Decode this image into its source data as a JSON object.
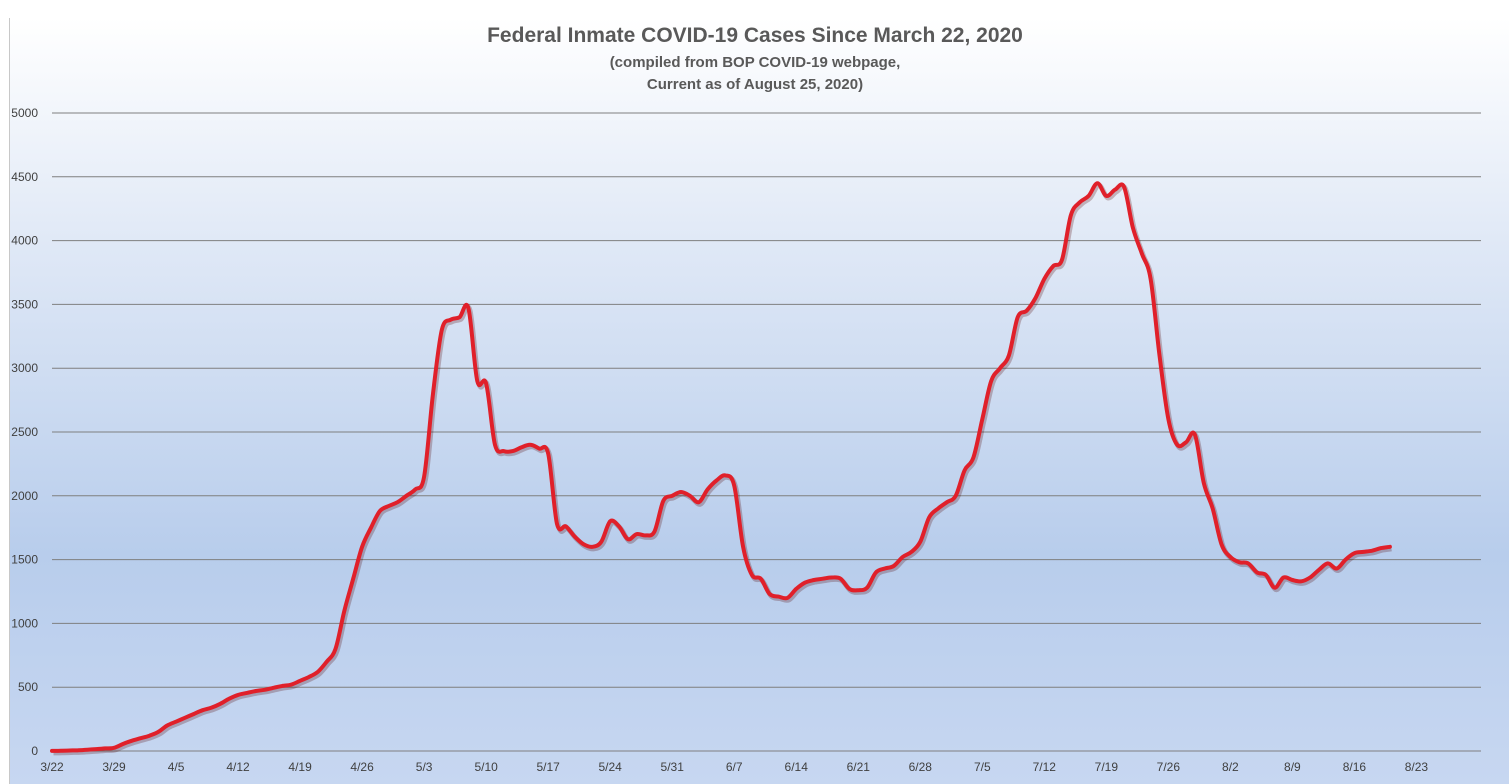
{
  "chart_data": {
    "type": "line",
    "title": "Federal Inmate COVID-19 Cases Since March 22, 2020",
    "subtitle_lines": [
      "(compiled from BOP COVID-19 webpage,",
      "Current as of August 25, 2020)"
    ],
    "xlabel": "",
    "ylabel": "",
    "ylim": [
      0,
      5000
    ],
    "yticks": [
      0,
      500,
      1000,
      1500,
      2000,
      2500,
      3000,
      3500,
      4000,
      4500,
      5000
    ],
    "xtick_labels": [
      "3/22",
      "3/29",
      "4/5",
      "4/12",
      "4/19",
      "4/26",
      "5/3",
      "5/10",
      "5/17",
      "5/24",
      "5/31",
      "6/7",
      "6/14",
      "6/21",
      "6/28",
      "7/5",
      "7/12",
      "7/19",
      "7/26",
      "8/2",
      "8/9",
      "8/16",
      "8/23"
    ],
    "grid": "horizontal",
    "series": [
      {
        "color": "#e0202a",
        "x_start": "3/22",
        "x_step_days": 1,
        "values": [
          1,
          2,
          4,
          6,
          10,
          15,
          20,
          25,
          55,
          80,
          100,
          120,
          150,
          200,
          230,
          260,
          290,
          320,
          340,
          370,
          410,
          440,
          455,
          470,
          480,
          495,
          510,
          520,
          550,
          580,
          620,
          700,
          800,
          1100,
          1350,
          1600,
          1750,
          1880,
          1920,
          1950,
          2000,
          2050,
          2150,
          2800,
          3300,
          3380,
          3400,
          3470,
          2900,
          2880,
          2400,
          2350,
          2350,
          2380,
          2400,
          2370,
          2330,
          1780,
          1760,
          1680,
          1620,
          1600,
          1640,
          1800,
          1760,
          1660,
          1700,
          1690,
          1720,
          1960,
          2000,
          2030,
          2000,
          1950,
          2050,
          2120,
          2160,
          2080,
          1600,
          1380,
          1350,
          1230,
          1210,
          1200,
          1270,
          1320,
          1340,
          1350,
          1360,
          1350,
          1270,
          1260,
          1280,
          1400,
          1430,
          1450,
          1520,
          1560,
          1640,
          1830,
          1900,
          1950,
          2000,
          2200,
          2300,
          2600,
          2900,
          3000,
          3100,
          3400,
          3450,
          3550,
          3700,
          3800,
          3850,
          4200,
          4300,
          4350,
          4450,
          4350,
          4400,
          4420,
          4100,
          3900,
          3700,
          3100,
          2600,
          2400,
          2420,
          2480,
          2100,
          1900,
          1620,
          1520,
          1480,
          1470,
          1400,
          1380,
          1280,
          1360,
          1340,
          1330,
          1360,
          1420,
          1470,
          1430,
          1500,
          1550,
          1560,
          1570,
          1590,
          1600
        ]
      }
    ]
  }
}
